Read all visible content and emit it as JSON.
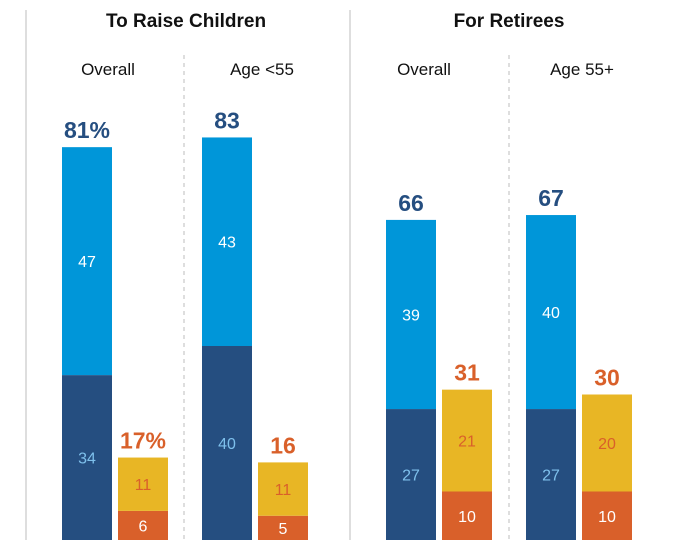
{
  "colors": {
    "dark_blue": "#254e80",
    "light_blue": "#0096d9",
    "gold": "#e8b625",
    "orange": "#d9602a",
    "total_positive": "#254e80",
    "total_negative": "#d9602a",
    "label_on_dark": "#7ec0ec",
    "label_on_light": "#ffffff",
    "label_on_gold": "#d9602a",
    "label_on_orange": "#ffffff",
    "divider": "#c8c8c8"
  },
  "chart_data": {
    "type": "bar",
    "stacked": true,
    "grid": false,
    "ylim": [
      0,
      100
    ],
    "groups": [
      {
        "title": "To Raise Children",
        "subgroups": [
          {
            "label": "Overall",
            "bars": [
              {
                "total_label": "81%",
                "segments": [
                  {
                    "value": 34,
                    "color": "dark_blue"
                  },
                  {
                    "value": 47,
                    "color": "light_blue"
                  }
                ]
              },
              {
                "total_label": "17%",
                "segments": [
                  {
                    "value": 6,
                    "color": "orange"
                  },
                  {
                    "value": 11,
                    "color": "gold"
                  }
                ]
              }
            ]
          },
          {
            "label": "Age <55",
            "bars": [
              {
                "total_label": "83",
                "segments": [
                  {
                    "value": 40,
                    "color": "dark_blue"
                  },
                  {
                    "value": 43,
                    "color": "light_blue"
                  }
                ]
              },
              {
                "total_label": "16",
                "segments": [
                  {
                    "value": 5,
                    "color": "orange"
                  },
                  {
                    "value": 11,
                    "color": "gold"
                  }
                ]
              }
            ]
          }
        ]
      },
      {
        "title": "For Retirees",
        "subgroups": [
          {
            "label": "Overall",
            "bars": [
              {
                "total_label": "66",
                "segments": [
                  {
                    "value": 27,
                    "color": "dark_blue"
                  },
                  {
                    "value": 39,
                    "color": "light_blue"
                  }
                ]
              },
              {
                "total_label": "31",
                "segments": [
                  {
                    "value": 10,
                    "color": "orange"
                  },
                  {
                    "value": 21,
                    "color": "gold"
                  }
                ]
              }
            ]
          },
          {
            "label": "Age 55+",
            "bars": [
              {
                "total_label": "67",
                "segments": [
                  {
                    "value": 27,
                    "color": "dark_blue"
                  },
                  {
                    "value": 40,
                    "color": "light_blue"
                  }
                ]
              },
              {
                "total_label": "30",
                "segments": [
                  {
                    "value": 10,
                    "color": "orange"
                  },
                  {
                    "value": 20,
                    "color": "gold"
                  }
                ]
              }
            ]
          }
        ]
      }
    ]
  }
}
